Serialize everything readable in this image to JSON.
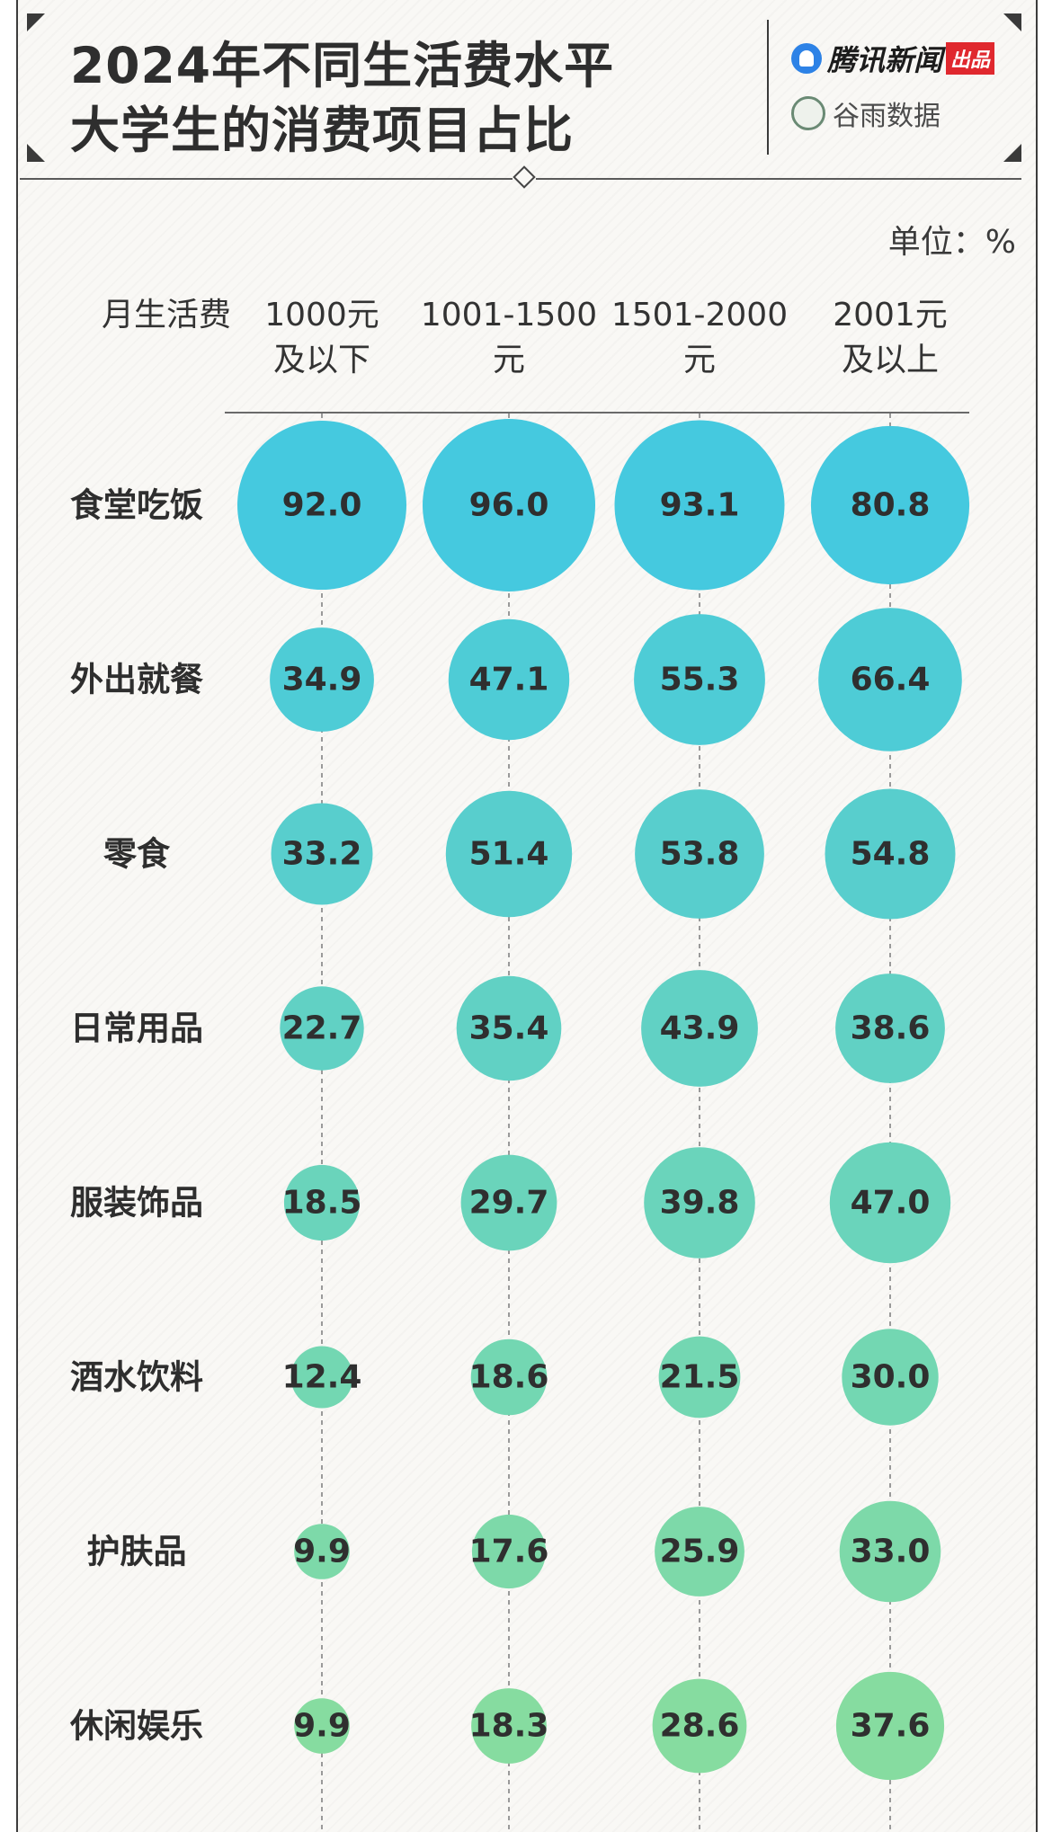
{
  "header": {
    "title_line1": "2024年不同生活费水平",
    "title_line2": "大学生的消费项目占比",
    "logo_tencent": "腾讯新闻",
    "logo_tencent_badge": "出品",
    "logo_guyu": "谷雨数据"
  },
  "unit_label": "单位：%",
  "colors": {
    "bubble_top": "#45c9df",
    "bubble_bottom": "#86dca0",
    "text": "#2f2f2f"
  },
  "chart_data": {
    "type": "bubble-table",
    "row_header": "月生活费",
    "columns": [
      {
        "line1": "1000元",
        "line2": "及以下"
      },
      {
        "line1": "1001-1500",
        "line2": "元"
      },
      {
        "line1": "1501-2000",
        "line2": "元"
      },
      {
        "line1": "2001元",
        "line2": "及以上"
      }
    ],
    "rows": [
      {
        "label": "食堂吃饭",
        "values": [
          92.0,
          96.0,
          93.1,
          80.8
        ]
      },
      {
        "label": "外出就餐",
        "values": [
          34.9,
          47.1,
          55.3,
          66.4
        ]
      },
      {
        "label": "零食",
        "values": [
          33.2,
          51.4,
          53.8,
          54.8
        ]
      },
      {
        "label": "日常用品",
        "values": [
          22.7,
          35.4,
          43.9,
          38.6
        ]
      },
      {
        "label": "服装饰品",
        "values": [
          18.5,
          29.7,
          39.8,
          47.0
        ]
      },
      {
        "label": "酒水饮料",
        "values": [
          12.4,
          18.6,
          21.5,
          30.0
        ]
      },
      {
        "label": "护肤品",
        "values": [
          9.9,
          17.6,
          25.9,
          33.0
        ]
      },
      {
        "label": "休闲娱乐",
        "values": [
          9.9,
          18.3,
          28.6,
          37.6
        ]
      }
    ]
  }
}
